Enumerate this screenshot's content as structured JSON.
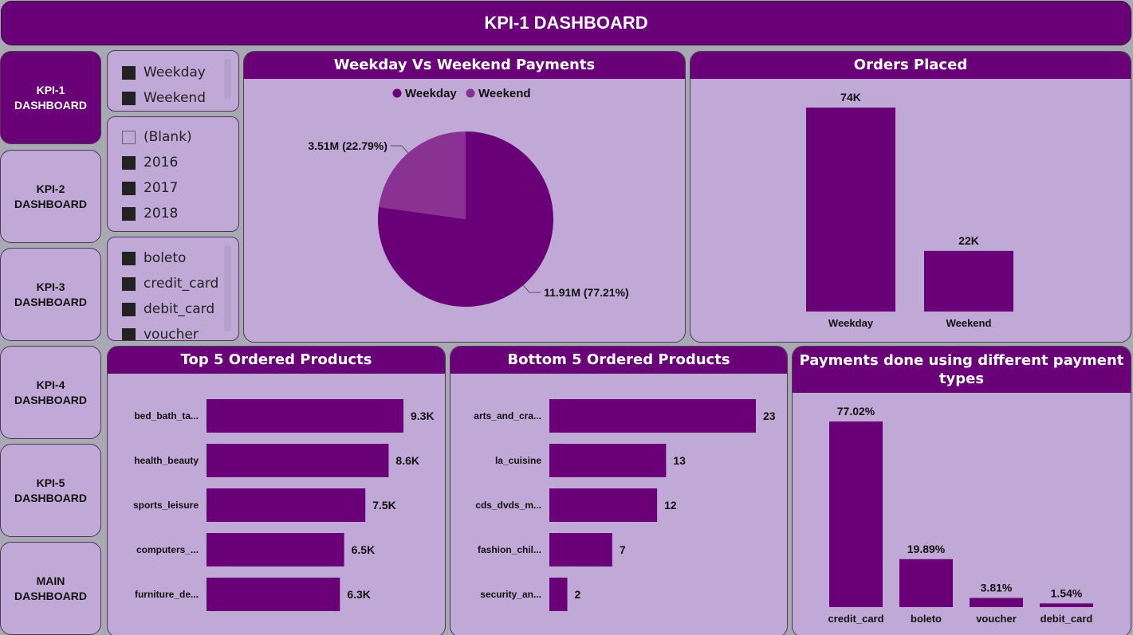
{
  "header": {
    "title": "KPI-1 DASHBOARD"
  },
  "nav": [
    {
      "line1": "KPI-1",
      "line2": "DASHBOARD",
      "active": true
    },
    {
      "line1": "KPI-2",
      "line2": "DASHBOARD",
      "active": false
    },
    {
      "line1": "KPI-3",
      "line2": "DASHBOARD",
      "active": false
    },
    {
      "line1": "KPI-4",
      "line2": "DASHBOARD",
      "active": false
    },
    {
      "line1": "KPI-5",
      "line2": "DASHBOARD",
      "active": false
    },
    {
      "line1": "MAIN",
      "line2": "DASHBOARD",
      "active": false
    }
  ],
  "slicers": {
    "daytype": [
      "Weekday",
      "Weekend"
    ],
    "year": [
      "(Blank)",
      "2016",
      "2017",
      "2018"
    ],
    "payment": [
      "boleto",
      "credit_card",
      "debit_card",
      "voucher"
    ]
  },
  "colors": {
    "primary": "#6a0078",
    "secondary": "#8a3194",
    "panel": "#c0a9d6",
    "checkbox": "#222222"
  },
  "panels": {
    "pie": {
      "title": "Weekday Vs Weekend Payments"
    },
    "orders": {
      "title": "Orders Placed"
    },
    "top5": {
      "title": "Top 5 Ordered Products"
    },
    "bottom5": {
      "title": "Bottom 5 Ordered Products"
    },
    "paytypes": {
      "title": "Payments done using different payment types"
    }
  },
  "chart_data": [
    {
      "id": "pie",
      "type": "pie",
      "legend": [
        "Weekday",
        "Weekend"
      ],
      "legend_position": "top-center",
      "slices": [
        {
          "name": "Weekday",
          "value": 11.91,
          "percent": 77.21,
          "label": "11.91M (77.21%)"
        },
        {
          "name": "Weekend",
          "value": 3.51,
          "percent": 22.79,
          "label": "3.51M (22.79%)"
        }
      ]
    },
    {
      "id": "orders",
      "type": "bar",
      "categories": [
        "Weekday",
        "Weekend"
      ],
      "values": [
        74000,
        22000
      ],
      "labels": [
        "74K",
        "22K"
      ]
    },
    {
      "id": "top5",
      "type": "bar",
      "orientation": "horizontal",
      "categories": [
        "bed_bath_ta...",
        "health_beauty",
        "sports_leisure",
        "computers_...",
        "furniture_de..."
      ],
      "values": [
        9300,
        8600,
        7500,
        6500,
        6300
      ],
      "labels": [
        "9.3K",
        "8.6K",
        "7.5K",
        "6.5K",
        "6.3K"
      ]
    },
    {
      "id": "bottom5",
      "type": "bar",
      "orientation": "horizontal",
      "categories": [
        "arts_and_cra...",
        "la_cuisine",
        "cds_dvds_m...",
        "fashion_chil...",
        "security_an..."
      ],
      "values": [
        23,
        13,
        12,
        7,
        2
      ],
      "labels": [
        "23",
        "13",
        "12",
        "7",
        "2"
      ]
    },
    {
      "id": "paytypes",
      "type": "bar",
      "categories": [
        "credit_card",
        "boleto",
        "voucher",
        "debit_card"
      ],
      "values": [
        77.02,
        19.89,
        3.81,
        1.54
      ],
      "labels": [
        "77.02%",
        "19.89%",
        "3.81%",
        "1.54%"
      ]
    }
  ]
}
